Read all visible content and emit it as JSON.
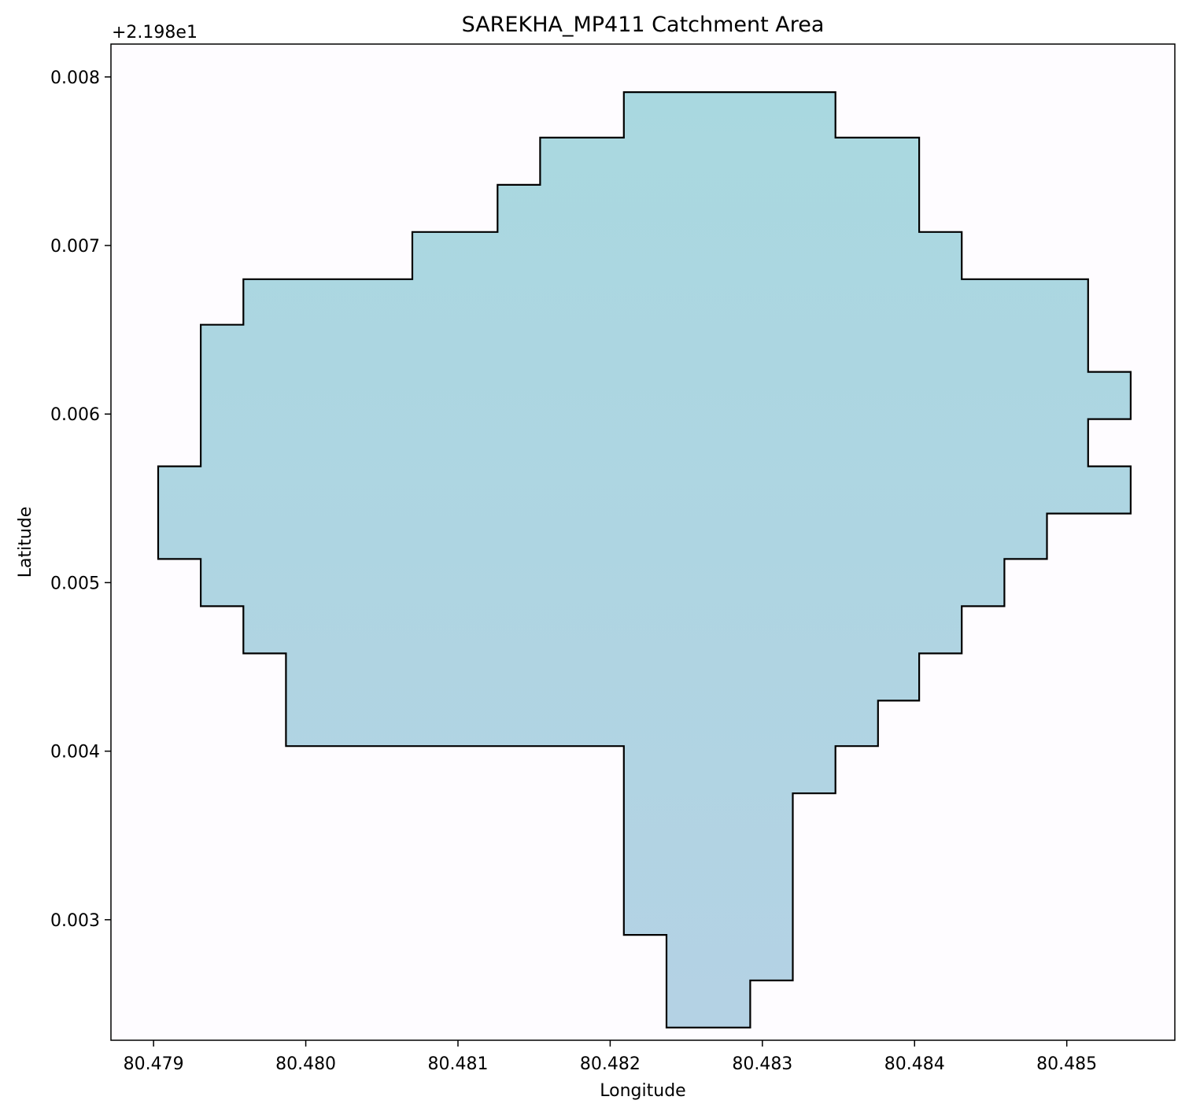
{
  "chart_data": {
    "type": "area",
    "title": "SAREKHA_MP411 Catchment Area",
    "xlabel": "Longitude",
    "ylabel": "Latitude",
    "y_offset_label": "+2.198e1",
    "xlim": [
      80.47872,
      80.48571
    ],
    "ylim": [
      0.002285,
      0.008195
    ],
    "grid": false,
    "x_ticks": [
      80.479,
      80.48,
      80.481,
      80.482,
      80.483,
      80.484,
      80.485
    ],
    "x_tick_labels": [
      "80.479",
      "80.480",
      "80.481",
      "80.482",
      "80.483",
      "80.484",
      "80.485"
    ],
    "y_ticks": [
      0.003,
      0.004,
      0.005,
      0.006,
      0.007,
      0.008
    ],
    "y_tick_labels": [
      "0.003",
      "0.004",
      "0.005",
      "0.006",
      "0.007",
      "0.008"
    ],
    "colors": {
      "fill_top": "#a9d8e0",
      "fill_bottom": "#b4d2e4",
      "edge": "#000000"
    },
    "series": [
      {
        "polygon": [
          [
            80.48209,
            0.00791
          ],
          [
            80.48348,
            0.00791
          ],
          [
            80.48348,
            0.00764
          ],
          [
            80.48403,
            0.00764
          ],
          [
            80.48403,
            0.00708
          ],
          [
            80.48431,
            0.00708
          ],
          [
            80.48431,
            0.0068
          ],
          [
            80.48514,
            0.0068
          ],
          [
            80.48514,
            0.00625
          ],
          [
            80.48542,
            0.00625
          ],
          [
            80.48542,
            0.00597
          ],
          [
            80.48514,
            0.00597
          ],
          [
            80.48514,
            0.00569
          ],
          [
            80.48542,
            0.00569
          ],
          [
            80.48542,
            0.00541
          ],
          [
            80.48487,
            0.00541
          ],
          [
            80.48487,
            0.00514
          ],
          [
            80.48459,
            0.00514
          ],
          [
            80.48459,
            0.00486
          ],
          [
            80.48431,
            0.00486
          ],
          [
            80.48431,
            0.00458
          ],
          [
            80.48403,
            0.00458
          ],
          [
            80.48403,
            0.0043
          ],
          [
            80.48376,
            0.0043
          ],
          [
            80.48376,
            0.00403
          ],
          [
            80.48348,
            0.00403
          ],
          [
            80.48348,
            0.00375
          ],
          [
            80.4832,
            0.00375
          ],
          [
            80.4832,
            0.00264
          ],
          [
            80.48292,
            0.00264
          ],
          [
            80.48292,
            0.00236
          ],
          [
            80.48237,
            0.00236
          ],
          [
            80.48237,
            0.00291
          ],
          [
            80.48209,
            0.00291
          ],
          [
            80.48209,
            0.00403
          ],
          [
            80.47987,
            0.00403
          ],
          [
            80.47987,
            0.00458
          ],
          [
            80.47959,
            0.00458
          ],
          [
            80.47959,
            0.00486
          ],
          [
            80.47931,
            0.00486
          ],
          [
            80.47931,
            0.00514
          ],
          [
            80.47903,
            0.00514
          ],
          [
            80.47903,
            0.00569
          ],
          [
            80.47931,
            0.00569
          ],
          [
            80.47931,
            0.00653
          ],
          [
            80.47959,
            0.00653
          ],
          [
            80.47959,
            0.0068
          ],
          [
            80.4807,
            0.0068
          ],
          [
            80.4807,
            0.00708
          ],
          [
            80.48126,
            0.00708
          ],
          [
            80.48126,
            0.00736
          ],
          [
            80.48154,
            0.00736
          ],
          [
            80.48154,
            0.00764
          ],
          [
            80.48209,
            0.00764
          ]
        ]
      }
    ]
  }
}
